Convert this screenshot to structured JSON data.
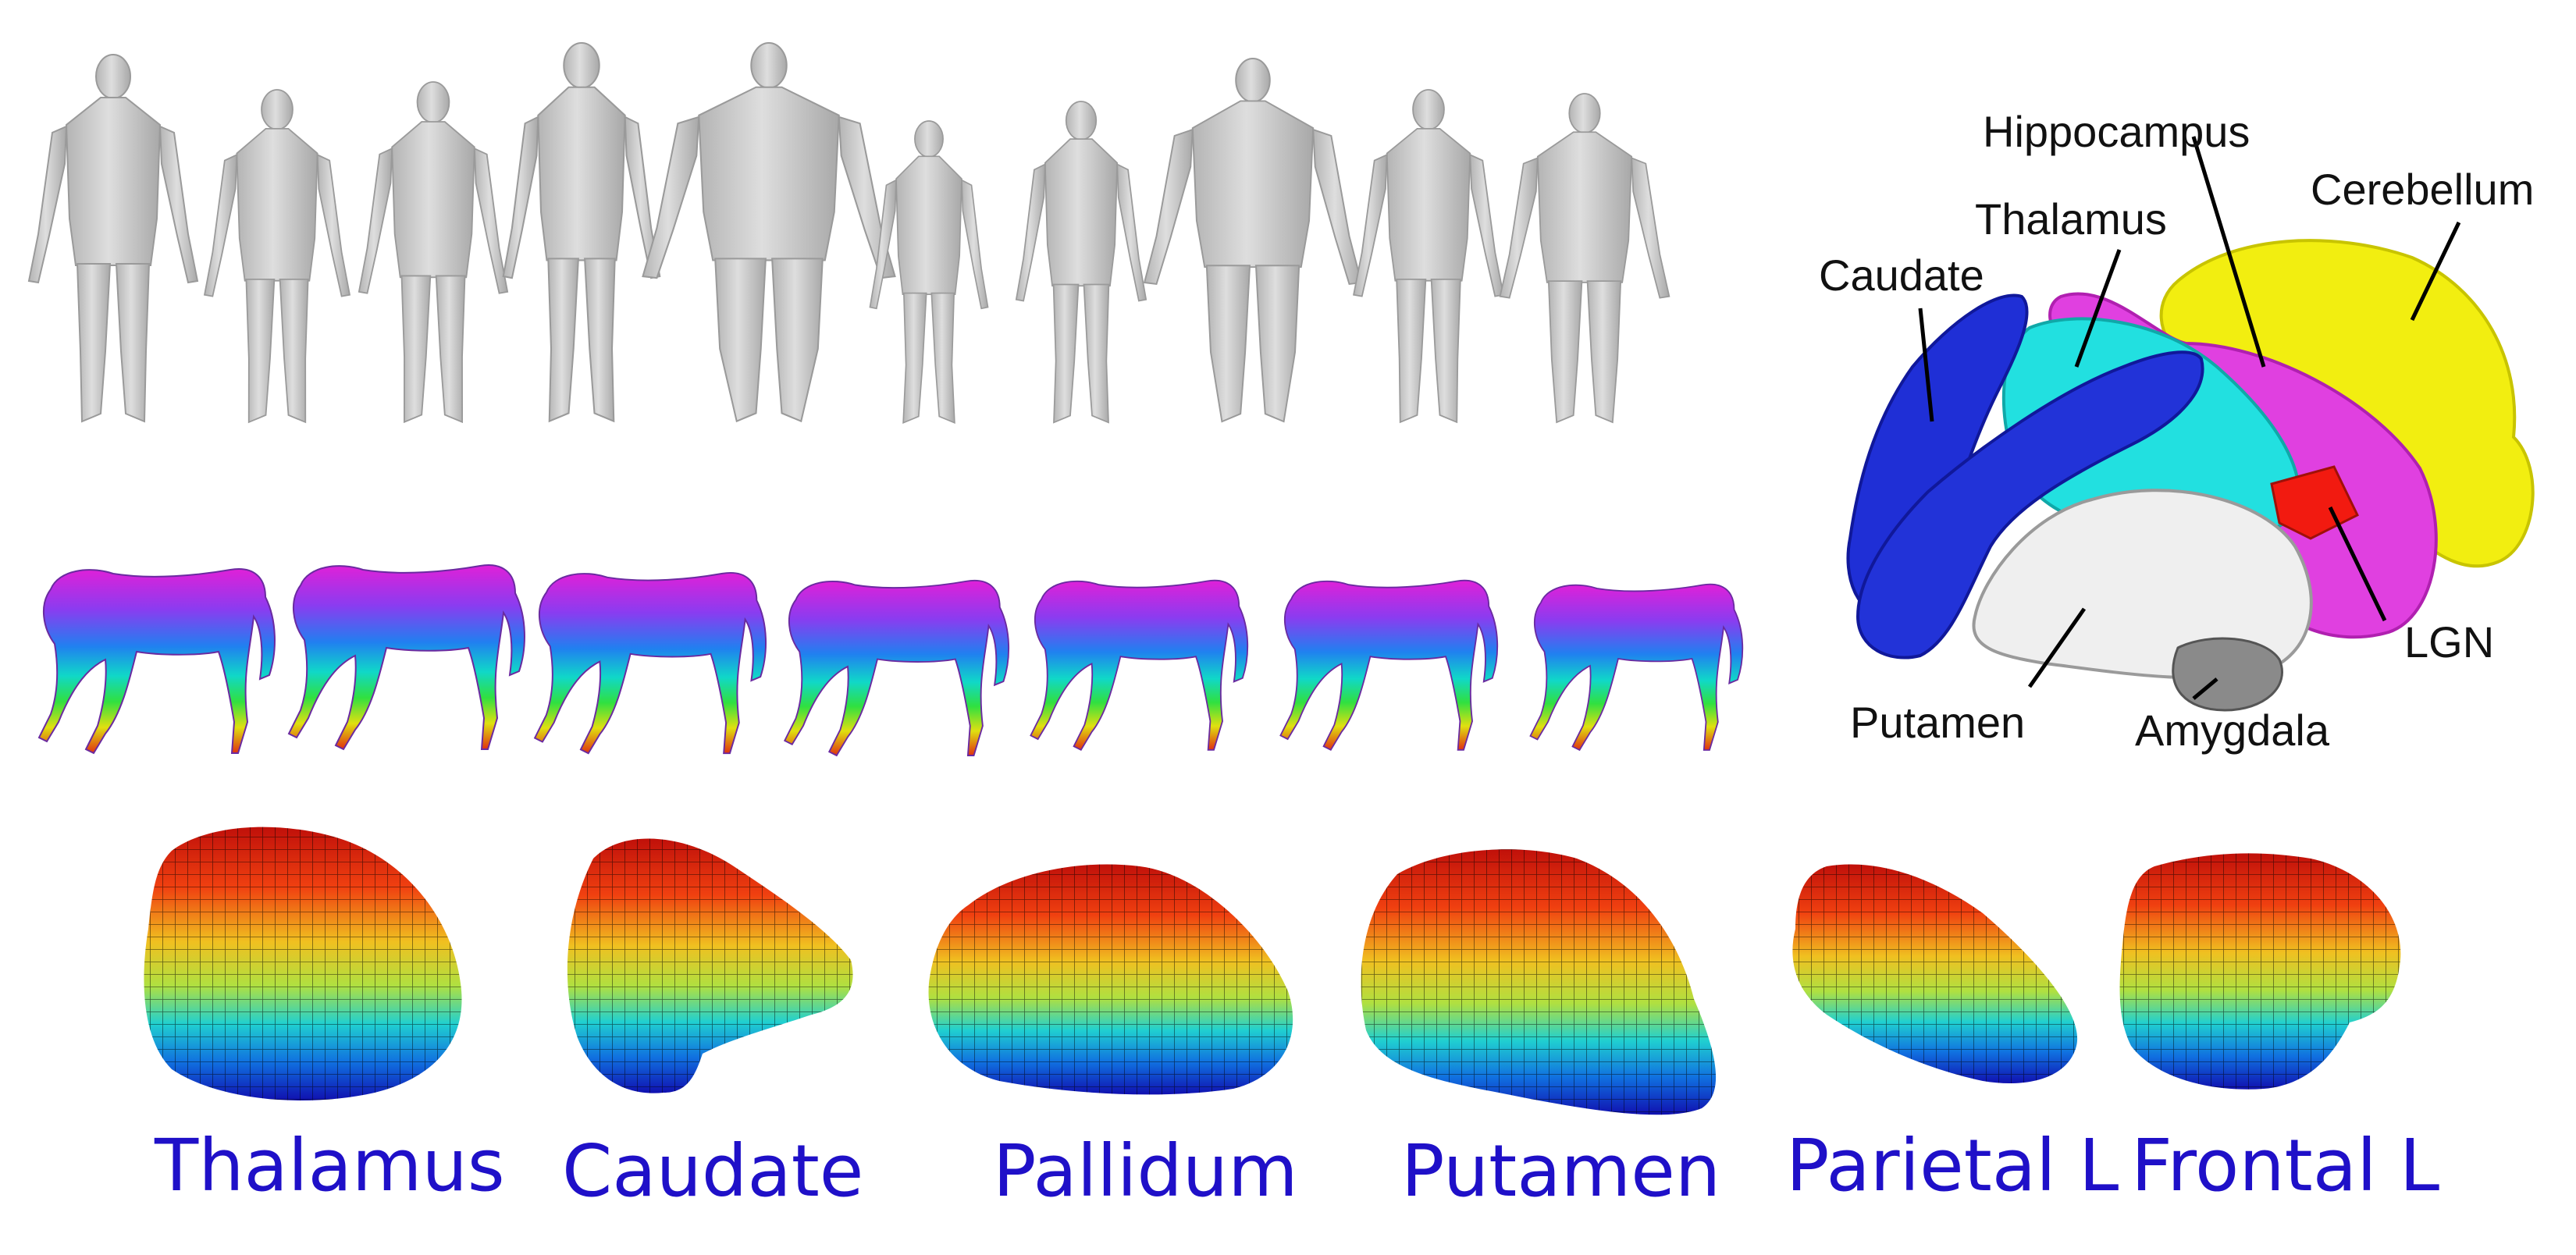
{
  "colors": {
    "human_mesh": "#c9c9c9",
    "region_label": "#1f10c8",
    "caudate": "#1f2fd6",
    "thalamus": "#22e0e0",
    "hippocampus": "#e040e0",
    "cerebellum": "#f2ee10",
    "lgn": "#f21a10",
    "putamen": "#efefef",
    "amygdala": "#8a8a8a"
  },
  "human_row": {
    "count": 10,
    "bodies": [
      {
        "name": "human-1",
        "build": "male-average"
      },
      {
        "name": "human-2",
        "build": "male-slim"
      },
      {
        "name": "human-3",
        "build": "male-athletic"
      },
      {
        "name": "human-4",
        "build": "male-tall"
      },
      {
        "name": "human-5",
        "build": "male-obese"
      },
      {
        "name": "human-6",
        "build": "female-child"
      },
      {
        "name": "human-7",
        "build": "female-slim"
      },
      {
        "name": "human-8",
        "build": "female-heavy"
      },
      {
        "name": "human-9",
        "build": "female-average"
      },
      {
        "name": "human-10",
        "build": "female-curvy"
      }
    ]
  },
  "horse_row": {
    "count": 7,
    "colormap": "rainbow-height"
  },
  "brain_diagram": {
    "labels": {
      "hippocampus": "Hippocampus",
      "thalamus": "Thalamus",
      "caudate": "Caudate",
      "cerebellum": "Cerebellum",
      "lgn": "LGN",
      "putamen": "Putamen",
      "amygdala": "Amygdala"
    }
  },
  "region_meshes": {
    "colormap": "jet",
    "labels": [
      "Thalamus",
      "Caudate",
      "Pallidum",
      "Putamen",
      "Parietal L",
      "Frontal L"
    ]
  }
}
